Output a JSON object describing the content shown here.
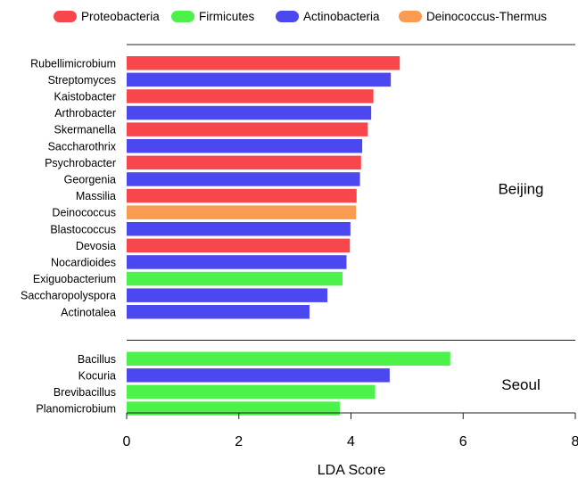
{
  "chart_data": {
    "type": "bar",
    "orientation": "horizontal",
    "xlabel": "LDA Score",
    "xlim": [
      0,
      8
    ],
    "xticks": [
      "0",
      "2",
      "4",
      "6",
      "8"
    ],
    "legend": [
      {
        "name": "Proteobacteria",
        "color": "#f8474c"
      },
      {
        "name": "Firmicutes",
        "color": "#4cf24a"
      },
      {
        "name": "Actinobacteria",
        "color": "#4b48ef"
      },
      {
        "name": "Deinococcus-Thermus",
        "color": "#f99b51"
      }
    ],
    "groups": [
      {
        "name": "Beijing",
        "bars": [
          {
            "label": "Rubellimicrobium",
            "value": 4.87,
            "phylum": "Proteobacteria"
          },
          {
            "label": "Streptomyces",
            "value": 4.71,
            "phylum": "Actinobacteria"
          },
          {
            "label": "Kaistobacter",
            "value": 4.4,
            "phylum": "Proteobacteria"
          },
          {
            "label": "Arthrobacter",
            "value": 4.36,
            "phylum": "Actinobacteria"
          },
          {
            "label": "Skermanella",
            "value": 4.3,
            "phylum": "Proteobacteria"
          },
          {
            "label": "Saccharothrix",
            "value": 4.2,
            "phylum": "Actinobacteria"
          },
          {
            "label": "Psychrobacter",
            "value": 4.18,
            "phylum": "Proteobacteria"
          },
          {
            "label": "Georgenia",
            "value": 4.16,
            "phylum": "Actinobacteria"
          },
          {
            "label": "Massilia",
            "value": 4.1,
            "phylum": "Proteobacteria"
          },
          {
            "label": "Deinococcus",
            "value": 4.09,
            "phylum": "Deinococcus-Thermus"
          },
          {
            "label": "Blastococcus",
            "value": 3.99,
            "phylum": "Actinobacteria"
          },
          {
            "label": "Devosia",
            "value": 3.98,
            "phylum": "Proteobacteria"
          },
          {
            "label": "Nocardioides",
            "value": 3.92,
            "phylum": "Actinobacteria"
          },
          {
            "label": "Exiguobacterium",
            "value": 3.85,
            "phylum": "Firmicutes"
          },
          {
            "label": "Saccharopolyspora",
            "value": 3.58,
            "phylum": "Actinobacteria"
          },
          {
            "label": "Actinotalea",
            "value": 3.26,
            "phylum": "Actinobacteria"
          }
        ]
      },
      {
        "name": "Seoul",
        "bars": [
          {
            "label": "Bacillus",
            "value": 5.77,
            "phylum": "Firmicutes"
          },
          {
            "label": "Kocuria",
            "value": 4.69,
            "phylum": "Actinobacteria"
          },
          {
            "label": "Brevibacillus",
            "value": 4.43,
            "phylum": "Firmicutes"
          },
          {
            "label": "Planomicrobium",
            "value": 3.8,
            "phylum": "Firmicutes"
          }
        ]
      }
    ]
  }
}
